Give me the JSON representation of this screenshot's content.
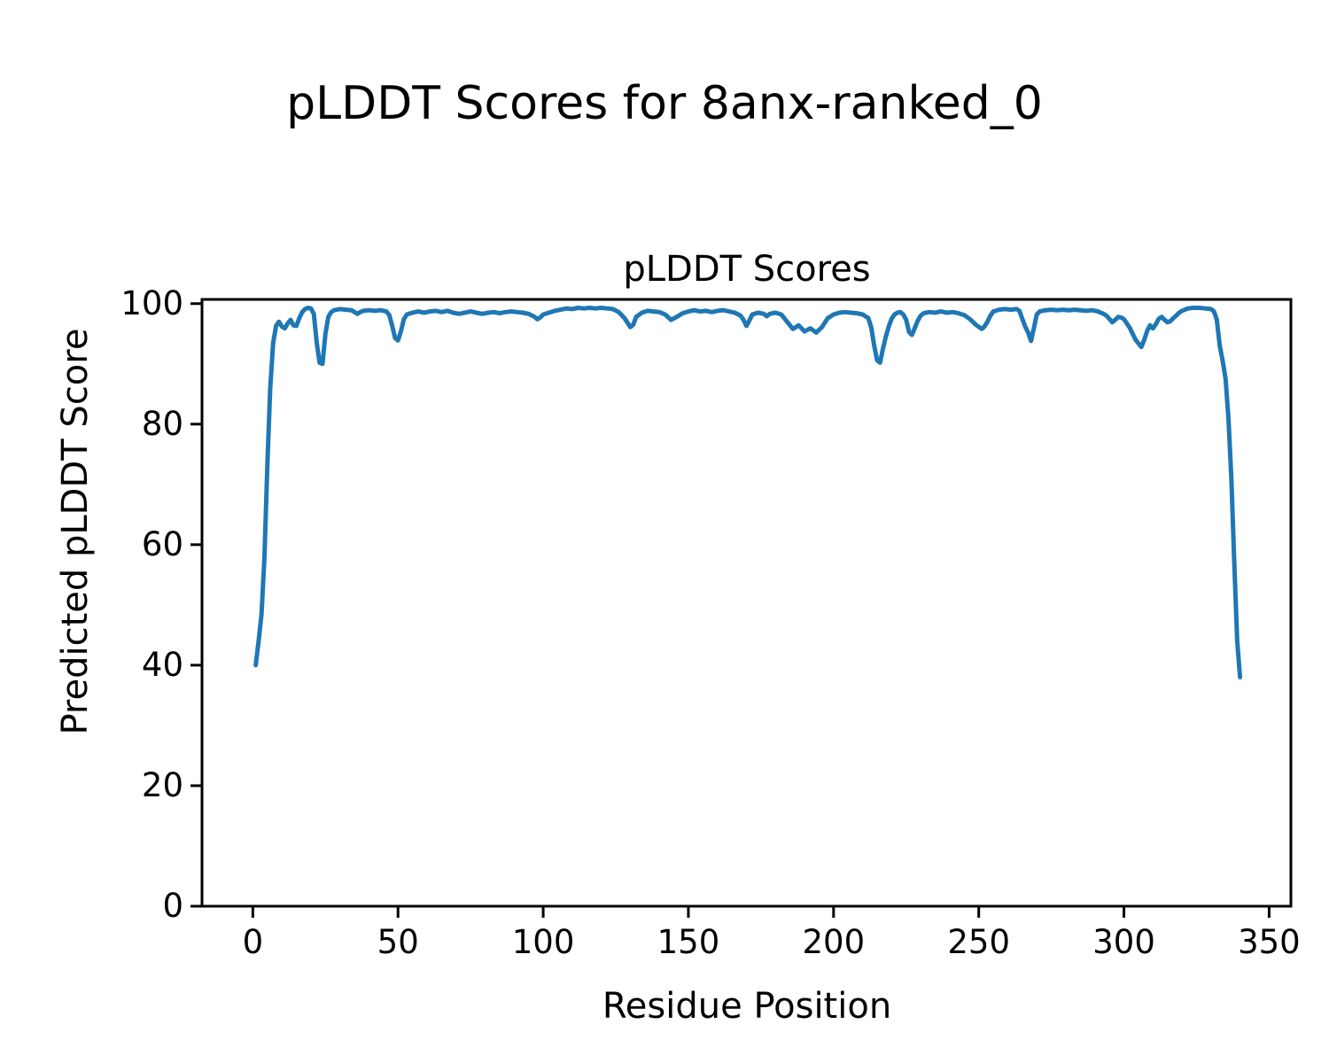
{
  "figure": {
    "suptitle": "pLDDT Scores for 8anx-ranked_0"
  },
  "chart_data": {
    "type": "line",
    "title": "pLDDT Scores",
    "xlabel": "Residue Position",
    "ylabel": "Predicted pLDDT Score",
    "xlim": [
      -17.5,
      357.5
    ],
    "ylim": [
      0,
      100.7
    ],
    "xticks": [
      0,
      50,
      100,
      150,
      200,
      250,
      300,
      350
    ],
    "yticks": [
      0,
      20,
      40,
      60,
      80,
      100
    ],
    "grid": false,
    "legend": "none",
    "line_color": "#1f77b4",
    "line_width": 5,
    "axis_color": "#000000",
    "series": [
      {
        "points": [
          [
            1,
            40
          ],
          [
            2,
            44
          ],
          [
            3,
            48.5
          ],
          [
            4,
            58
          ],
          [
            5,
            73
          ],
          [
            6,
            86
          ],
          [
            7,
            93.5
          ],
          [
            8,
            96.3
          ],
          [
            9,
            97.0
          ],
          [
            10,
            96.2
          ],
          [
            11,
            95.9
          ],
          [
            12,
            96.7
          ],
          [
            13,
            97.3
          ],
          [
            14,
            96.4
          ],
          [
            15,
            96.3
          ],
          [
            16,
            97.6
          ],
          [
            17,
            98.6
          ],
          [
            18,
            99.1
          ],
          [
            19,
            99.3
          ],
          [
            20,
            99.2
          ],
          [
            21,
            98.3
          ],
          [
            22,
            93.5
          ],
          [
            23,
            90.2
          ],
          [
            24,
            90.0
          ],
          [
            25,
            95.0
          ],
          [
            26,
            97.8
          ],
          [
            27,
            98.6
          ],
          [
            28,
            98.9
          ],
          [
            30,
            99.1
          ],
          [
            32,
            99.0
          ],
          [
            34,
            98.9
          ],
          [
            36,
            98.3
          ],
          [
            37,
            98.6
          ],
          [
            38,
            98.8
          ],
          [
            40,
            98.9
          ],
          [
            42,
            98.8
          ],
          [
            44,
            98.9
          ],
          [
            46,
            98.7
          ],
          [
            47,
            98.1
          ],
          [
            48,
            96.3
          ],
          [
            49,
            94.3
          ],
          [
            50,
            93.9
          ],
          [
            51,
            95.4
          ],
          [
            52,
            97.4
          ],
          [
            53,
            98.2
          ],
          [
            55,
            98.5
          ],
          [
            57,
            98.7
          ],
          [
            59,
            98.5
          ],
          [
            61,
            98.7
          ],
          [
            63,
            98.8
          ],
          [
            65,
            98.6
          ],
          [
            67,
            98.8
          ],
          [
            69,
            98.5
          ],
          [
            71,
            98.3
          ],
          [
            73,
            98.5
          ],
          [
            75,
            98.7
          ],
          [
            77,
            98.5
          ],
          [
            79,
            98.3
          ],
          [
            81,
            98.5
          ],
          [
            83,
            98.6
          ],
          [
            85,
            98.4
          ],
          [
            87,
            98.6
          ],
          [
            89,
            98.7
          ],
          [
            91,
            98.6
          ],
          [
            93,
            98.5
          ],
          [
            95,
            98.3
          ],
          [
            97,
            97.8
          ],
          [
            98,
            97.4
          ],
          [
            99,
            97.7
          ],
          [
            100,
            98.2
          ],
          [
            102,
            98.5
          ],
          [
            104,
            98.8
          ],
          [
            106,
            99.0
          ],
          [
            108,
            99.2
          ],
          [
            110,
            99.1
          ],
          [
            112,
            99.3
          ],
          [
            114,
            99.2
          ],
          [
            116,
            99.3
          ],
          [
            118,
            99.2
          ],
          [
            120,
            99.3
          ],
          [
            122,
            99.2
          ],
          [
            124,
            99.1
          ],
          [
            126,
            98.6
          ],
          [
            128,
            97.6
          ],
          [
            130,
            96.1
          ],
          [
            131,
            96.5
          ],
          [
            132,
            97.8
          ],
          [
            134,
            98.5
          ],
          [
            136,
            98.8
          ],
          [
            138,
            98.7
          ],
          [
            140,
            98.6
          ],
          [
            142,
            98.2
          ],
          [
            144,
            97.3
          ],
          [
            146,
            97.8
          ],
          [
            148,
            98.4
          ],
          [
            150,
            98.7
          ],
          [
            152,
            98.9
          ],
          [
            154,
            98.7
          ],
          [
            156,
            98.8
          ],
          [
            158,
            98.6
          ],
          [
            160,
            98.8
          ],
          [
            162,
            98.9
          ],
          [
            164,
            98.7
          ],
          [
            166,
            98.5
          ],
          [
            168,
            98.0
          ],
          [
            169,
            97.3
          ],
          [
            170,
            96.3
          ],
          [
            171,
            97.2
          ],
          [
            172,
            98.2
          ],
          [
            174,
            98.5
          ],
          [
            176,
            98.3
          ],
          [
            177,
            97.9
          ],
          [
            178,
            98.3
          ],
          [
            180,
            98.5
          ],
          [
            182,
            98.2
          ],
          [
            184,
            97.0
          ],
          [
            186,
            95.8
          ],
          [
            188,
            96.4
          ],
          [
            190,
            95.4
          ],
          [
            192,
            95.9
          ],
          [
            194,
            95.2
          ],
          [
            196,
            96.1
          ],
          [
            198,
            97.6
          ],
          [
            200,
            98.2
          ],
          [
            202,
            98.5
          ],
          [
            204,
            98.6
          ],
          [
            206,
            98.5
          ],
          [
            208,
            98.4
          ],
          [
            210,
            98.2
          ],
          [
            212,
            97.6
          ],
          [
            213,
            96.0
          ],
          [
            214,
            93.0
          ],
          [
            215,
            90.6
          ],
          [
            216,
            90.2
          ],
          [
            217,
            92.5
          ],
          [
            218,
            94.5
          ],
          [
            219,
            96.2
          ],
          [
            220,
            97.5
          ],
          [
            221,
            98.2
          ],
          [
            222,
            98.5
          ],
          [
            223,
            98.6
          ],
          [
            224,
            98.2
          ],
          [
            225,
            97.3
          ],
          [
            226,
            95.3
          ],
          [
            227,
            94.8
          ],
          [
            228,
            96.0
          ],
          [
            229,
            97.2
          ],
          [
            230,
            98.0
          ],
          [
            231,
            98.4
          ],
          [
            233,
            98.6
          ],
          [
            235,
            98.5
          ],
          [
            237,
            98.7
          ],
          [
            239,
            98.5
          ],
          [
            241,
            98.6
          ],
          [
            243,
            98.4
          ],
          [
            245,
            98.1
          ],
          [
            247,
            97.4
          ],
          [
            249,
            96.5
          ],
          [
            251,
            95.8
          ],
          [
            252,
            96.2
          ],
          [
            253,
            97.0
          ],
          [
            254,
            98.0
          ],
          [
            255,
            98.7
          ],
          [
            257,
            99.0
          ],
          [
            259,
            99.1
          ],
          [
            261,
            99.0
          ],
          [
            263,
            99.1
          ],
          [
            264,
            98.8
          ],
          [
            265,
            97.5
          ],
          [
            266,
            96.2
          ],
          [
            267,
            95.2
          ],
          [
            268,
            93.8
          ],
          [
            269,
            96.0
          ],
          [
            270,
            98.2
          ],
          [
            271,
            98.7
          ],
          [
            273,
            98.9
          ],
          [
            275,
            99.0
          ],
          [
            277,
            98.9
          ],
          [
            279,
            99.0
          ],
          [
            281,
            98.9
          ],
          [
            283,
            99.0
          ],
          [
            285,
            98.9
          ],
          [
            287,
            98.8
          ],
          [
            289,
            98.9
          ],
          [
            291,
            98.7
          ],
          [
            293,
            98.3
          ],
          [
            294,
            98.0
          ],
          [
            296,
            96.9
          ],
          [
            297,
            97.3
          ],
          [
            298,
            97.8
          ],
          [
            299,
            97.7
          ],
          [
            300,
            97.4
          ],
          [
            302,
            96.0
          ],
          [
            304,
            94.0
          ],
          [
            306,
            92.8
          ],
          [
            307,
            94.0
          ],
          [
            308,
            95.5
          ],
          [
            309,
            96.4
          ],
          [
            310,
            95.9
          ],
          [
            311,
            96.6
          ],
          [
            312,
            97.5
          ],
          [
            313,
            97.8
          ],
          [
            314,
            97.3
          ],
          [
            315,
            96.9
          ],
          [
            316,
            97.1
          ],
          [
            317,
            97.6
          ],
          [
            318,
            98.0
          ],
          [
            319,
            98.5
          ],
          [
            320,
            98.8
          ],
          [
            321,
            99.0
          ],
          [
            322,
            99.2
          ],
          [
            324,
            99.3
          ],
          [
            326,
            99.3
          ],
          [
            328,
            99.2
          ],
          [
            330,
            99.1
          ],
          [
            331,
            98.7
          ],
          [
            332,
            97.3
          ],
          [
            333,
            93.0
          ],
          [
            334,
            90.5
          ],
          [
            335,
            87.5
          ],
          [
            336,
            81.0
          ],
          [
            337,
            71.0
          ],
          [
            338,
            57.0
          ],
          [
            339,
            44.0
          ],
          [
            340,
            38.0
          ]
        ]
      }
    ]
  }
}
